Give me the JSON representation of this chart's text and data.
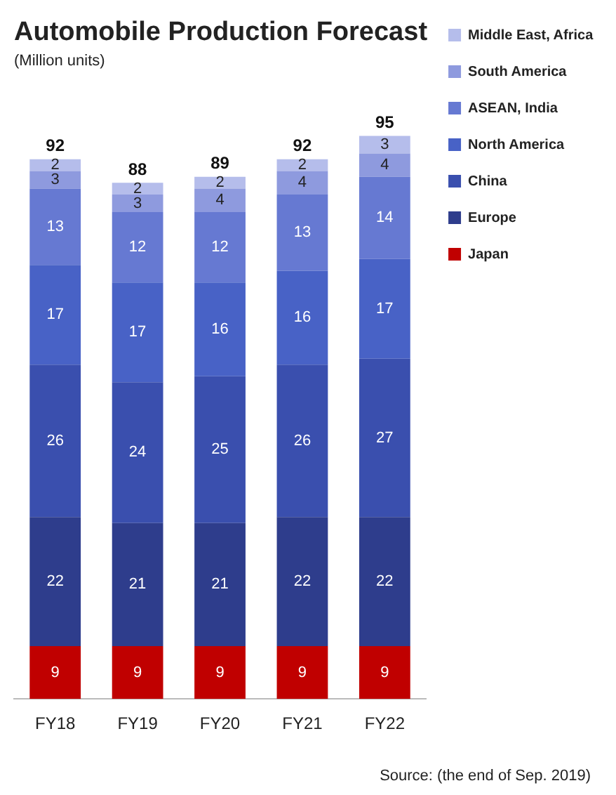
{
  "chart_data": {
    "type": "bar",
    "title": "Automobile Production Forecast",
    "subtitle": "(Million units)",
    "stacked": true,
    "categories": [
      "FY18",
      "FY19",
      "FY20",
      "FY21",
      "FY22"
    ],
    "series": [
      {
        "name": "Japan",
        "color": "#c00000",
        "values": [
          9,
          9,
          9,
          9,
          9
        ]
      },
      {
        "name": "Europe",
        "color": "#2e3d8c",
        "values": [
          22,
          21,
          21,
          22,
          22
        ]
      },
      {
        "name": "China",
        "color": "#3a4fae",
        "values": [
          26,
          24,
          25,
          26,
          27
        ]
      },
      {
        "name": "North America",
        "color": "#4862c6",
        "values": [
          17,
          17,
          16,
          16,
          17
        ]
      },
      {
        "name": "ASEAN, India",
        "color": "#6679d2",
        "values": [
          13,
          12,
          12,
          13,
          14
        ]
      },
      {
        "name": "South America",
        "color": "#8e9ade",
        "values": [
          3,
          3,
          4,
          4,
          4
        ]
      },
      {
        "name": "Middle East, Africa",
        "color": "#b5bdeb",
        "values": [
          2,
          2,
          2,
          2,
          3
        ]
      }
    ],
    "data_labels": true,
    "totals": [
      "92",
      "88",
      "89",
      "92",
      "95"
    ],
    "legend": "top right",
    "grid": false,
    "annotations": [
      "Source: (the end of Sep. 2019)"
    ]
  }
}
